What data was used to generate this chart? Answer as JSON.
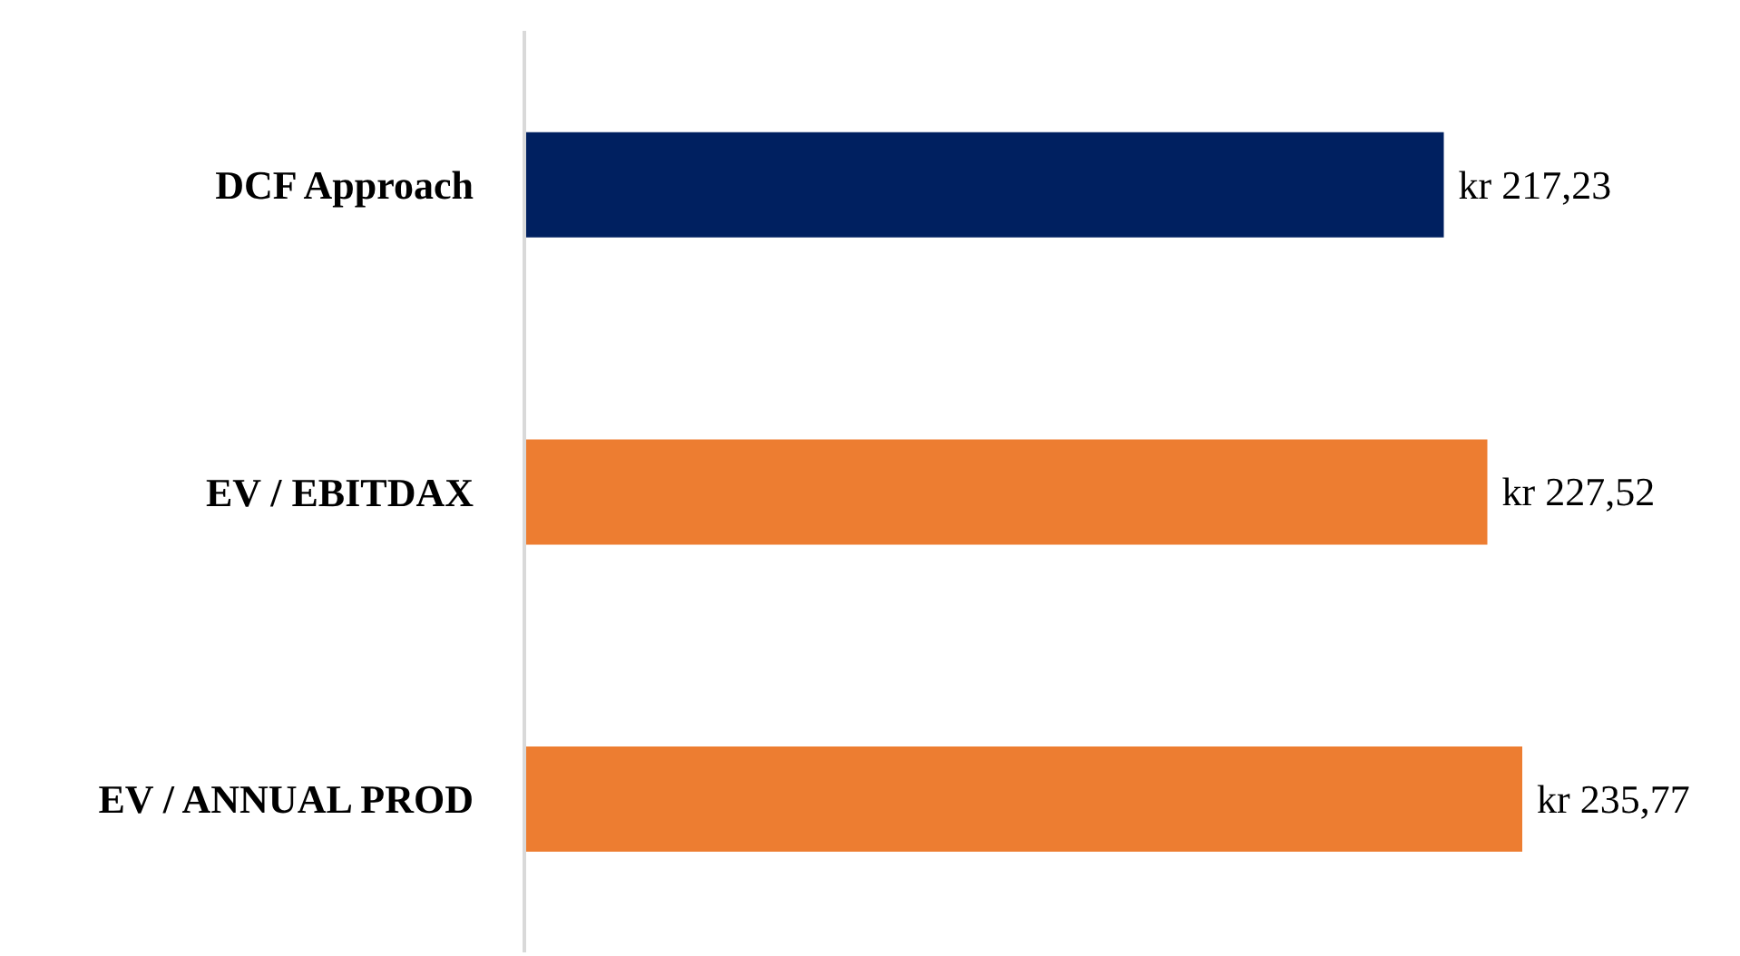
{
  "chart_data": {
    "type": "bar",
    "orientation": "horizontal",
    "categories": [
      "DCF Approach",
      "EV / EBITDAX",
      "EV / ANNUAL PROD"
    ],
    "values": [
      217.23,
      227.52,
      235.77
    ],
    "colors": [
      "#002060",
      "#ed7d31",
      "#ed7d31"
    ],
    "value_labels": [
      "kr 217,23",
      "kr 227,52",
      "kr 235,77"
    ],
    "tick_labels": "y",
    "grid": false,
    "legend": false
  }
}
